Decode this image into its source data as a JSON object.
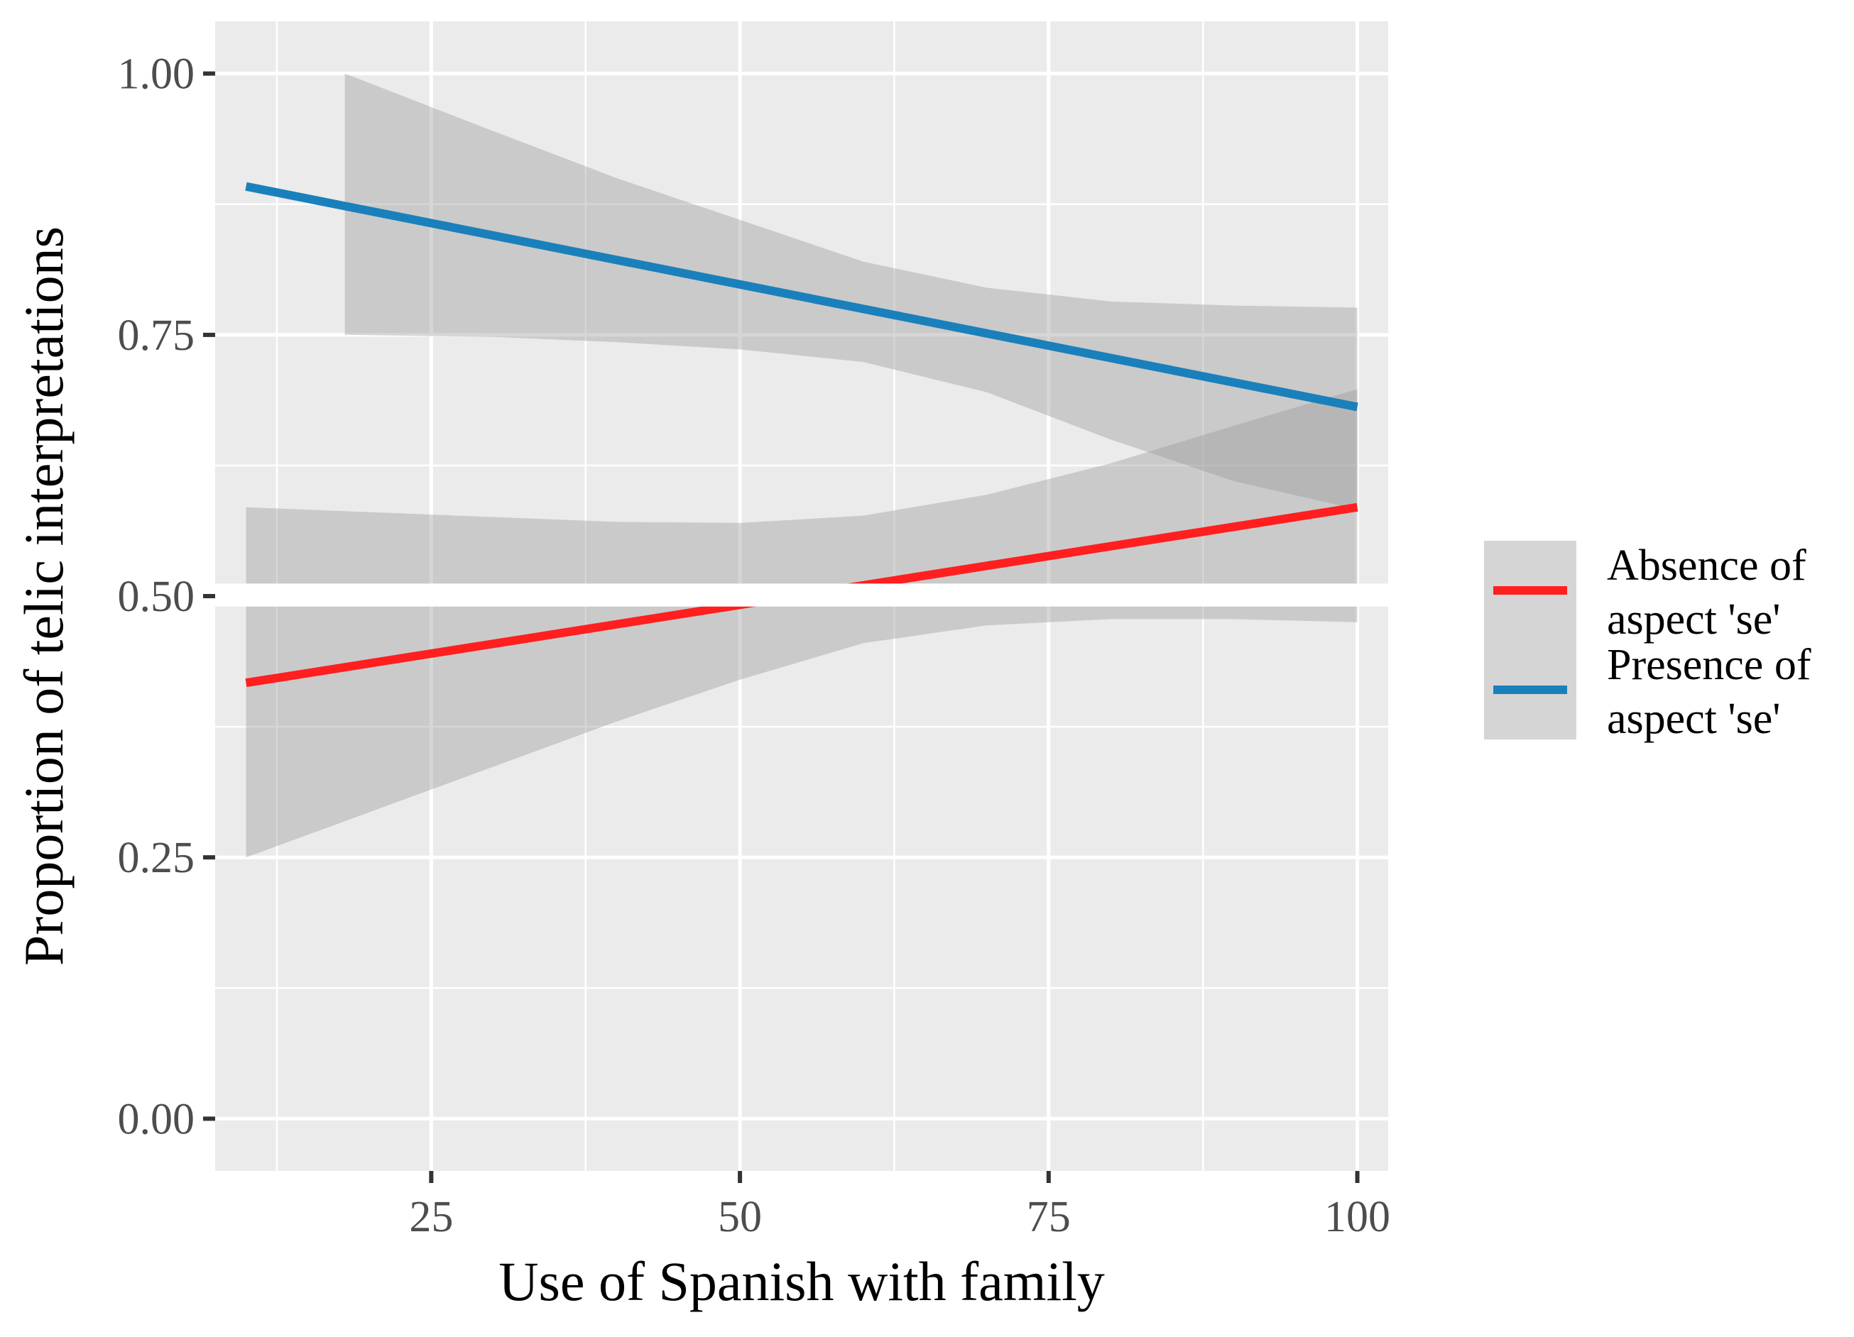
{
  "chart_data": {
    "type": "line",
    "title": "",
    "xlabel": "Use of Spanish with family",
    "ylabel": "Proportion of telic interpretations",
    "xlim": [
      7.5,
      102.5
    ],
    "ylim": [
      -0.05,
      1.05
    ],
    "x_ticks": [
      25,
      50,
      75,
      100
    ],
    "x_tick_labels": [
      "25",
      "50",
      "75",
      "100"
    ],
    "x_minor": [
      12.5,
      37.5,
      62.5,
      87.5
    ],
    "y_ticks": [
      0.0,
      0.25,
      0.5,
      0.75,
      1.0
    ],
    "y_tick_labels": [
      "0.00",
      "0.25",
      "0.50",
      "0.75",
      "1.00"
    ],
    "y_minor": [
      0.125,
      0.375,
      0.625,
      0.875
    ],
    "grid": true,
    "legend_position": "right",
    "series": [
      {
        "name": "Absence of aspect 'se'",
        "label_lines": [
          "Absence of",
          "aspect 'se'"
        ],
        "color": "#ff1f1f",
        "x": [
          10,
          100
        ],
        "y": [
          0.417,
          0.585
        ],
        "ribbon": {
          "x": [
            10,
            25,
            40,
            50,
            60,
            70,
            80,
            90,
            100
          ],
          "lower": [
            0.25,
            0.315,
            0.38,
            0.42,
            0.455,
            0.472,
            0.478,
            0.478,
            0.475
          ],
          "upper": [
            0.585,
            0.578,
            0.571,
            0.57,
            0.577,
            0.597,
            0.627,
            0.663,
            0.698
          ]
        }
      },
      {
        "name": "Presence of aspect 'se'",
        "label_lines": [
          "Presence of",
          "aspect 'se'"
        ],
        "color": "#1a80bb",
        "x": [
          10,
          100
        ],
        "y": [
          0.892,
          0.681
        ],
        "ribbon": {
          "x": [
            18,
            30,
            40,
            50,
            60,
            70,
            80,
            90,
            100
          ],
          "lower": [
            0.75,
            0.748,
            0.743,
            0.736,
            0.724,
            0.695,
            0.65,
            0.61,
            0.583
          ],
          "upper": [
            1.0,
            0.945,
            0.9,
            0.86,
            0.82,
            0.795,
            0.782,
            0.778,
            0.776
          ]
        }
      }
    ],
    "overlay_gap": {
      "y_from": 0.49,
      "y_to": 0.512,
      "x_from": 7.5,
      "x_to": 102.5
    }
  }
}
